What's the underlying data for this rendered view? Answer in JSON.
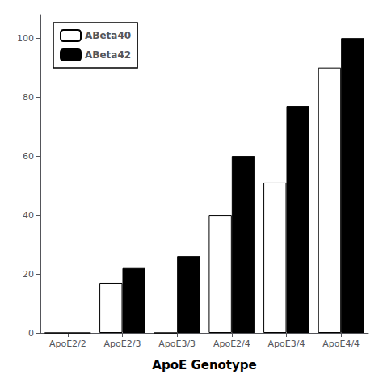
{
  "chart_data": {
    "type": "bar",
    "xlabel": "ApoE Genotype",
    "categories": [
      "ApoE2/2",
      "ApoE2/3",
      "ApoE3/3",
      "ApoE2/4",
      "ApoE3/4",
      "ApoE4/4"
    ],
    "series": [
      {
        "name": "ABeta40",
        "color": "#ffffff",
        "values": [
          0,
          17,
          0,
          40,
          51,
          90
        ]
      },
      {
        "name": "ABeta42",
        "color": "#000000",
        "values": [
          0,
          22,
          26,
          60,
          77,
          100
        ]
      }
    ],
    "ylim": [
      0,
      108
    ],
    "yticks": [
      0,
      20,
      40,
      60,
      80,
      100
    ],
    "grid": false,
    "legend": "upper left"
  }
}
